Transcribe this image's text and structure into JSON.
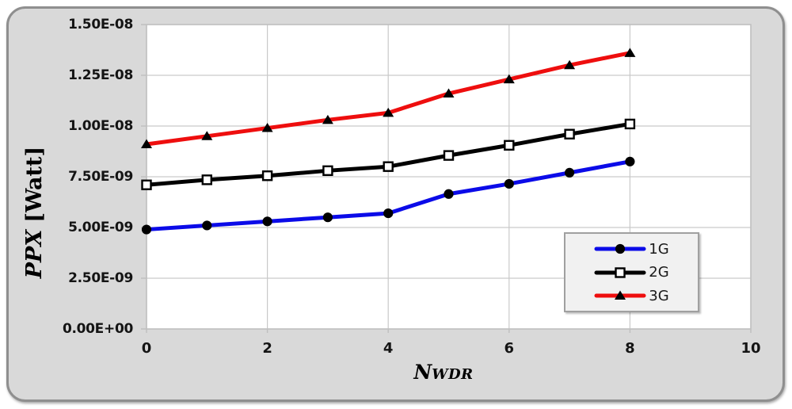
{
  "palette": {
    "frame_fill": "#D9D9D9",
    "frame_border": "#8F8F8F",
    "plot_bg": "#FFFFFF",
    "plot_border": "#BFBFBF",
    "gridline": "#C9C9C9",
    "tick_text": "#141414",
    "legend_fill": "#F1F1F1",
    "legend_border": "#A0A0A0"
  },
  "chart_data": {
    "type": "line",
    "title": "",
    "xlabel": {
      "main": "N",
      "sub": "WDR"
    },
    "ylabel": {
      "main": "PPX",
      "unit": "[Watt]"
    },
    "xlim": [
      0,
      10
    ],
    "ylim": [
      0,
      1.5e-08
    ],
    "grid": true,
    "legend_position": "inside-bottom-right",
    "xticks": {
      "values": [
        0,
        2,
        4,
        6,
        8,
        10
      ],
      "labels": [
        "0",
        "2",
        "4",
        "6",
        "8",
        "10"
      ]
    },
    "yticks": {
      "values": [
        0,
        2.5e-09,
        5e-09,
        7.5e-09,
        1e-08,
        1.25e-08,
        1.5e-08
      ],
      "labels": [
        "0.00E+00",
        "2.50E-09",
        "5.00E-09",
        "7.50E-09",
        "1.00E-08",
        "1.25E-08",
        "1.50E-08"
      ]
    },
    "x": [
      0,
      1,
      2,
      3,
      4,
      5,
      6,
      7,
      8
    ],
    "series": [
      {
        "name": "1G",
        "color": "#0B0BE8",
        "marker": "circle-filled",
        "marker_color": "#000000",
        "values": [
          4.9e-09,
          5.1e-09,
          5.3e-09,
          5.5e-09,
          5.7e-09,
          6.65e-09,
          7.15e-09,
          7.7e-09,
          8.25e-09
        ]
      },
      {
        "name": "2G",
        "color": "#000000",
        "marker": "square-open",
        "marker_color": "#FFFFFF",
        "values": [
          7.1e-09,
          7.35e-09,
          7.55e-09,
          7.8e-09,
          8e-09,
          8.55e-09,
          9.05e-09,
          9.6e-09,
          1.01e-08
        ]
      },
      {
        "name": "3G",
        "color": "#EE0E0E",
        "marker": "triangle-filled",
        "marker_color": "#000000",
        "values": [
          9.1e-09,
          9.5e-09,
          9.9e-09,
          1.03e-08,
          1.065e-08,
          1.16e-08,
          1.23e-08,
          1.3e-08,
          1.36e-08
        ]
      }
    ]
  }
}
